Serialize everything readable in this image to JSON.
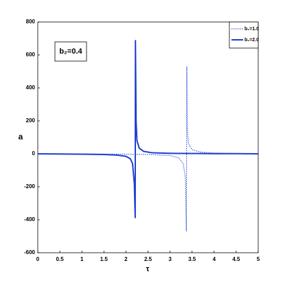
{
  "chart_data": {
    "type": "line",
    "annotation": "b₂=0.4",
    "xlabel": "τ",
    "ylabel": "a",
    "xlim": [
      0,
      5
    ],
    "xticks": [
      0,
      0.5,
      1,
      1.5,
      2,
      2.5,
      3,
      3.5,
      4,
      4.5,
      5
    ],
    "ylim": [
      -600,
      800
    ],
    "yticks": [
      -600,
      -400,
      -200,
      0,
      200,
      400,
      600,
      800
    ],
    "legend": "upper right",
    "series": [
      {
        "name": "b₁=1.0",
        "color": "#3a5ae0",
        "style": "dotted",
        "x": [
          0,
          1,
          2,
          2.5,
          3,
          3.2,
          3.3,
          3.35,
          3.37,
          3.38,
          3.39,
          3.42,
          3.5,
          3.7,
          4,
          4.5,
          5
        ],
        "values": [
          0,
          -1,
          -2,
          -4,
          -10,
          -25,
          -60,
          -150,
          -470,
          530,
          150,
          60,
          25,
          10,
          5,
          2,
          1
        ]
      },
      {
        "name": "b₁=2.0",
        "color": "#1f3fd0",
        "style": "solid",
        "x": [
          0,
          0.5,
          1,
          1.5,
          1.8,
          2,
          2.1,
          2.15,
          2.19,
          2.21,
          2.215,
          2.23,
          2.25,
          2.3,
          2.4,
          2.6,
          3,
          3.5,
          4,
          4.5,
          5
        ],
        "values": [
          0,
          -1,
          -2,
          -4,
          -8,
          -15,
          -30,
          -60,
          -180,
          -390,
          690,
          200,
          80,
          35,
          15,
          6,
          3,
          2,
          1,
          1,
          0
        ]
      }
    ]
  }
}
